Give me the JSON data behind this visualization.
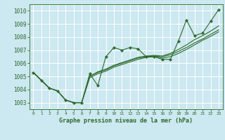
{
  "xlabel": "Graphe pression niveau de la mer (hPa)",
  "bg_color": "#cce8f0",
  "grid_color": "#ffffff",
  "line_color": "#2d6a2d",
  "xlim": [
    -0.5,
    23.5
  ],
  "ylim": [
    1002.5,
    1010.5
  ],
  "yticks": [
    1003,
    1004,
    1005,
    1006,
    1007,
    1008,
    1009,
    1010
  ],
  "xticks": [
    0,
    1,
    2,
    3,
    4,
    5,
    6,
    7,
    8,
    9,
    10,
    11,
    12,
    13,
    14,
    15,
    16,
    17,
    18,
    19,
    20,
    21,
    22,
    23
  ],
  "line1_x": [
    0,
    1,
    2,
    3,
    4,
    5,
    6,
    7,
    8,
    9,
    10,
    11,
    12,
    13,
    14,
    15,
    16,
    17,
    18,
    19,
    20,
    21,
    22,
    23
  ],
  "line1_y": [
    1005.3,
    1004.7,
    1004.1,
    1003.9,
    1003.2,
    1003.0,
    1003.0,
    1005.2,
    1004.3,
    1006.5,
    1007.2,
    1007.0,
    1007.2,
    1007.1,
    1006.5,
    1006.5,
    1006.3,
    1006.3,
    1007.7,
    1009.3,
    1008.1,
    1008.3,
    1009.2,
    1010.1
  ],
  "line2_x": [
    0,
    1,
    2,
    3,
    4,
    5,
    6,
    7,
    8,
    9,
    10,
    11,
    12,
    13,
    14,
    15,
    16,
    17,
    18,
    19,
    20,
    21,
    22,
    23
  ],
  "line2_y": [
    1005.3,
    1004.7,
    1004.1,
    1003.9,
    1003.2,
    1003.0,
    1003.0,
    1005.0,
    1005.3,
    1005.5,
    1005.8,
    1006.0,
    1006.2,
    1006.4,
    1006.5,
    1006.55,
    1006.5,
    1006.65,
    1006.9,
    1007.2,
    1007.55,
    1007.85,
    1008.2,
    1008.55
  ],
  "line3_x": [
    0,
    1,
    2,
    3,
    4,
    5,
    6,
    7,
    8,
    9,
    10,
    11,
    12,
    13,
    14,
    15,
    16,
    17,
    18,
    19,
    20,
    21,
    22,
    23
  ],
  "line3_y": [
    1005.3,
    1004.7,
    1004.1,
    1003.9,
    1003.2,
    1003.0,
    1003.0,
    1005.0,
    1005.35,
    1005.55,
    1005.85,
    1006.05,
    1006.25,
    1006.45,
    1006.55,
    1006.6,
    1006.55,
    1006.75,
    1007.05,
    1007.4,
    1007.8,
    1008.1,
    1008.45,
    1008.85
  ],
  "line4_x": [
    0,
    1,
    2,
    3,
    4,
    5,
    6,
    7,
    8,
    9,
    10,
    11,
    12,
    13,
    14,
    15,
    16,
    17,
    18,
    19,
    20,
    21,
    22,
    23
  ],
  "line4_y": [
    1005.3,
    1004.7,
    1004.1,
    1003.9,
    1003.2,
    1003.0,
    1003.0,
    1004.9,
    1005.2,
    1005.4,
    1005.7,
    1005.9,
    1006.1,
    1006.3,
    1006.45,
    1006.5,
    1006.4,
    1006.5,
    1006.75,
    1007.05,
    1007.4,
    1007.75,
    1008.05,
    1008.4
  ],
  "xlabel_fontsize": 6,
  "ytick_fontsize": 5.5,
  "xtick_fontsize": 4.5
}
